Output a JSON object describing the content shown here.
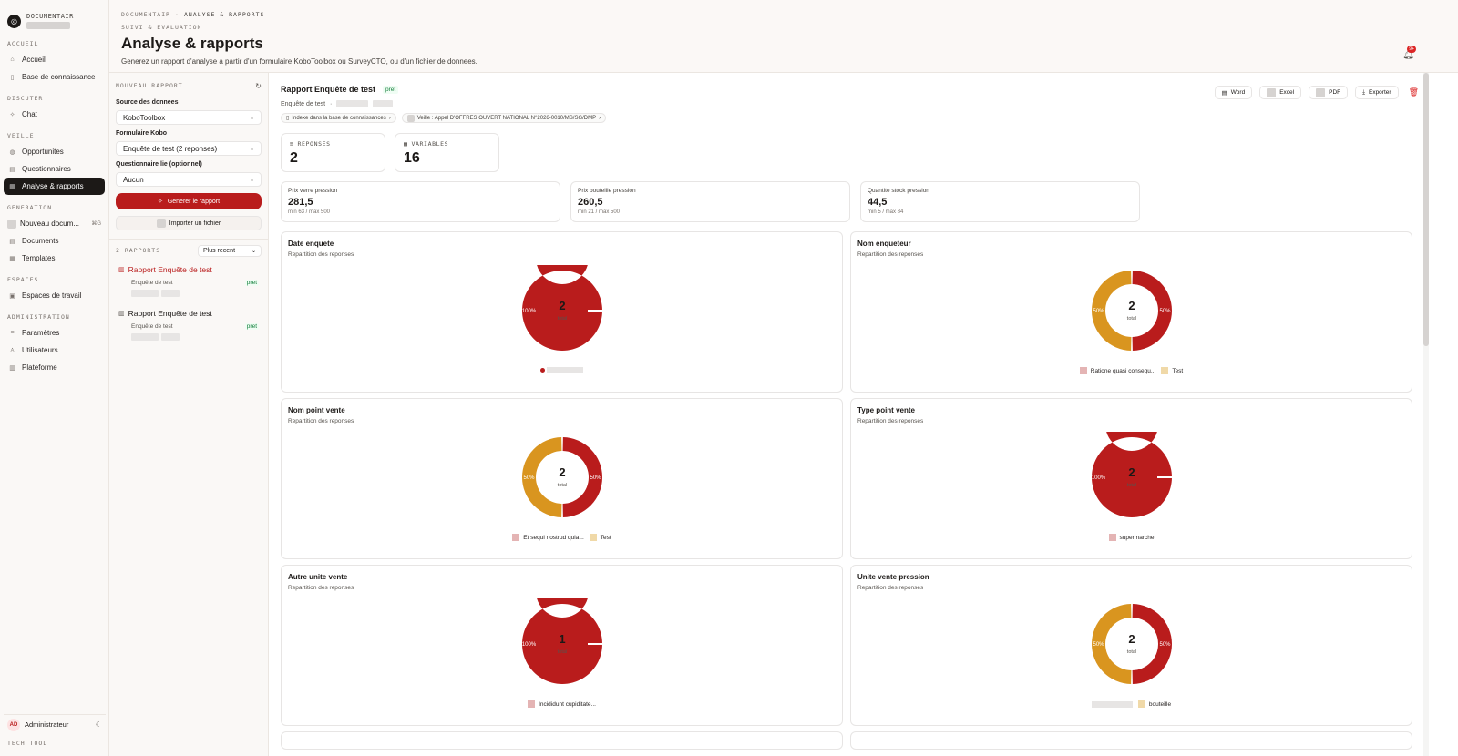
{
  "sidebar": {
    "brand": "DOCUMENTAIR",
    "sections": [
      {
        "title": "ACCUEIL",
        "items": [
          {
            "label": "Accueil",
            "icon": "home-icon"
          },
          {
            "label": "Base de connaissance",
            "icon": "book-icon"
          }
        ]
      },
      {
        "title": "DISCUTER",
        "items": [
          {
            "label": "Chat",
            "icon": "sparkle-icon"
          }
        ]
      },
      {
        "title": "VEILLE",
        "items": [
          {
            "label": "Opportunites",
            "icon": "globe-icon"
          },
          {
            "label": "Questionnaires",
            "icon": "file-icon"
          },
          {
            "label": "Analyse & rapports",
            "icon": "chart-icon",
            "active": true
          }
        ]
      },
      {
        "title": "GENERATION",
        "items": [
          {
            "label": "Nouveau docum...",
            "kbd": "⌘G"
          },
          {
            "label": "Documents",
            "icon": "file-icon"
          },
          {
            "label": "Templates",
            "icon": "template-icon"
          }
        ]
      },
      {
        "title": "ESPACES",
        "items": [
          {
            "label": "Espaces de travail",
            "icon": "folder-icon"
          }
        ]
      },
      {
        "title": "ADMINISTRATION",
        "items": [
          {
            "label": "Paramètres",
            "icon": "sliders-icon"
          },
          {
            "label": "Utilisateurs",
            "icon": "user-icon"
          },
          {
            "label": "Plateforme",
            "icon": "chart-icon"
          }
        ]
      }
    ],
    "user": {
      "initials": "AD",
      "name": "Administrateur"
    },
    "footer": "TECH TOOL"
  },
  "header": {
    "crumbs": [
      "DOCUMENTAIR",
      "·",
      "ANALYSE & RAPPORTS"
    ],
    "sub": "SUIVI & EVALUATION",
    "title": "Analyse & rapports",
    "description": "Generez un rapport d'analyse a partir d'un formulaire KoboToolbox ou SurveyCTO, ou d'un fichier de donnees.",
    "notif_badge": "9+"
  },
  "form": {
    "title": "NOUVEAU RAPPORT",
    "source_label": "Source des donnees",
    "source_value": "KoboToolbox",
    "form_label": "Formulaire Kobo",
    "form_value": "Enquête de test (2 reponses)",
    "quest_label": "Questionnaire lie (optionnel)",
    "quest_value": "Aucun",
    "generate_btn": "Generer le rapport",
    "import_btn": "Importer un fichier",
    "count": "2 RAPPORTS",
    "sort": "Plus recent",
    "reports": [
      {
        "title": "Rapport Enquête de test",
        "sub": "Enquête de test",
        "status": "pret"
      },
      {
        "title": "Rapport Enquête de test",
        "sub": "Enquête de test",
        "status": "pret"
      }
    ]
  },
  "report": {
    "title": "Rapport Enquête de test",
    "status": "pret",
    "subtitle": "Enquête de test",
    "chips": [
      "Indexe dans la base de connaissances",
      "Veille : Appel D'OFFRES OUVERT NATIONAL N°2026-0010/MS/SG/DMP"
    ],
    "actions": {
      "word": "Word",
      "excel": "Excel",
      "pdf": "PDF",
      "export": "Exporter"
    },
    "stats": [
      {
        "label": "REPONSES",
        "value": "2"
      },
      {
        "label": "VARIABLES",
        "value": "16"
      }
    ],
    "metrics": [
      {
        "label": "Prix verre pression",
        "value": "281,5",
        "range": "min 63 / max 500"
      },
      {
        "label": "Prix bouteille pression",
        "value": "260,5",
        "range": "min 21 / max 500"
      },
      {
        "label": "Quantite stock pression",
        "value": "44,5",
        "range": "min 5 / max 84"
      }
    ],
    "total_label": "total",
    "chart_subtitle": "Repartition des reponses"
  },
  "colors": {
    "primary": "#b91c1c",
    "secondary": "#d9951f",
    "accent_dark": "#1c1917"
  },
  "chart_data": [
    {
      "type": "pie",
      "title": "Date enquete",
      "total": 2,
      "slices": [
        {
          "label": "",
          "value": 100,
          "color": "#b91c1c"
        }
      ]
    },
    {
      "type": "pie",
      "title": "Nom enqueteur",
      "total": 2,
      "slices": [
        {
          "label": "Ratione quasi consequ...",
          "value": 50,
          "color": "#b91c1c"
        },
        {
          "label": "Test",
          "value": 50,
          "color": "#d9951f"
        }
      ]
    },
    {
      "type": "pie",
      "title": "Nom point vente",
      "total": 2,
      "slices": [
        {
          "label": "Et sequi nostrud quia...",
          "value": 50,
          "color": "#b91c1c"
        },
        {
          "label": "Test",
          "value": 50,
          "color": "#d9951f"
        }
      ]
    },
    {
      "type": "pie",
      "title": "Type point vente",
      "total": 2,
      "slices": [
        {
          "label": "supermarche",
          "value": 100,
          "color": "#b91c1c"
        }
      ]
    },
    {
      "type": "pie",
      "title": "Autre unite vente",
      "total": 1,
      "slices": [
        {
          "label": "Incididunt cupiditate...",
          "value": 100,
          "color": "#b91c1c"
        }
      ]
    },
    {
      "type": "pie",
      "title": "Unite vente pression",
      "total": 2,
      "slices": [
        {
          "label": "",
          "value": 50,
          "color": "#b91c1c"
        },
        {
          "label": "bouteille",
          "value": 50,
          "color": "#d9951f"
        }
      ]
    }
  ]
}
